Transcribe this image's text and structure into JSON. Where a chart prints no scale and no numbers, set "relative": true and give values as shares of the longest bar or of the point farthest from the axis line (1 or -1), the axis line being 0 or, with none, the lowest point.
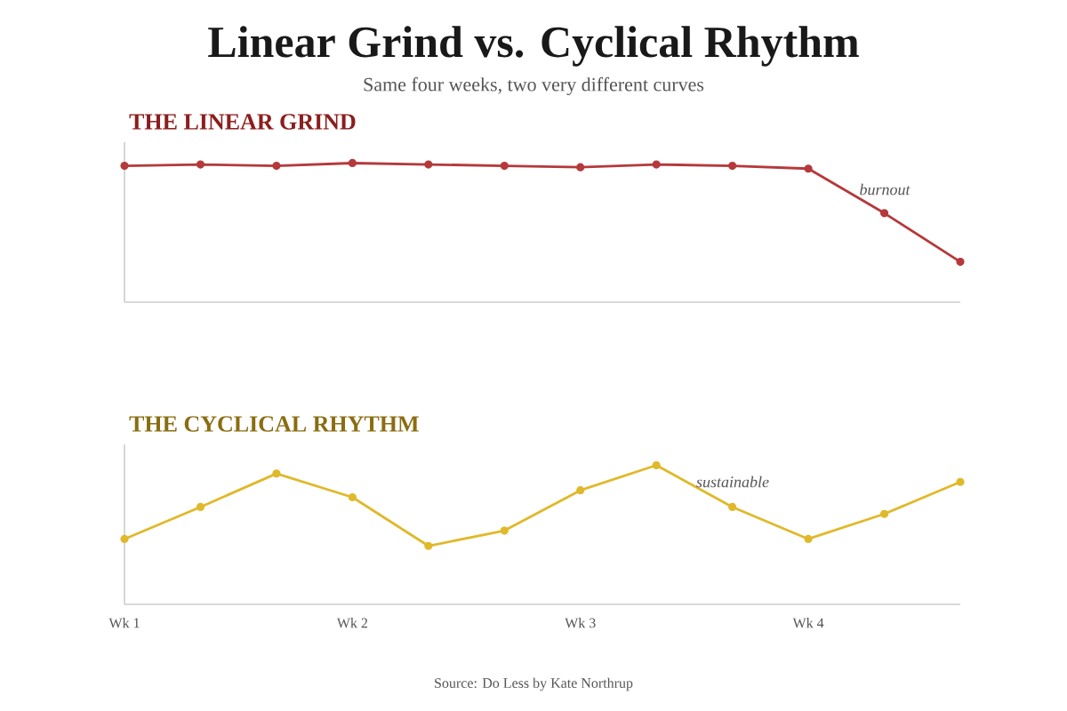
{
  "chart_data": [
    {
      "type": "other",
      "title": "Linear Grind vs. Cyclical Rhythm",
      "subtitle": "Same four weeks, two very different curves"
    },
    {
      "type": "line",
      "title": "THE LINEAR GRIND",
      "relative": true,
      "categories": [
        null,
        null,
        null,
        null,
        null,
        null,
        null,
        null,
        null,
        null,
        null,
        null
      ],
      "tick_labels": false,
      "marker": "circle",
      "line_style": "solid",
      "series": [
        {
          "color": "#b5393b",
          "values": [
            0.98,
            0.99,
            0.98,
            1,
            0.99,
            0.98,
            0.97,
            0.99,
            0.98,
            0.96,
            0.64,
            0.29
          ]
        }
      ],
      "annotations": [
        "burnout"
      ]
    },
    {
      "type": "line",
      "title": "THE CYCLICAL RHYTHM",
      "relative": true,
      "categories": [
        "Wk 1",
        null,
        null,
        "Wk 2",
        null,
        null,
        "Wk 3",
        null,
        null,
        "Wk 4",
        null,
        null
      ],
      "tick_labels": "x",
      "marker": "circle",
      "line_style": "solid",
      "series": [
        {
          "color": "#e0b92a",
          "values": [
            0.47,
            0.7,
            0.94,
            0.77,
            0.42,
            0.53,
            0.82,
            1,
            0.7,
            0.47,
            0.65,
            0.88
          ]
        }
      ],
      "annotations": [
        "sustainable",
        "Source: Do Less by Kate Northrup"
      ]
    }
  ]
}
